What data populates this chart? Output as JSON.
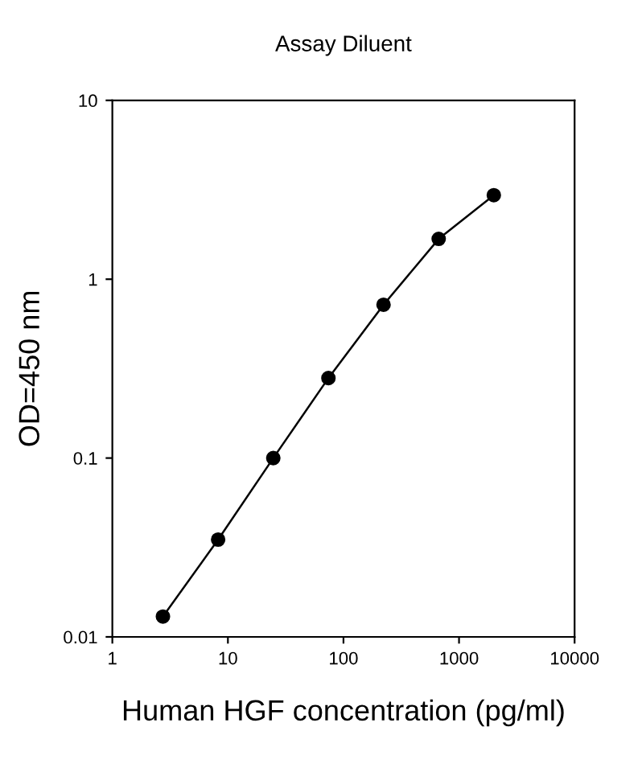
{
  "chart_data": {
    "type": "line",
    "title": "Assay Diluent",
    "xlabel": "Human HGF concentration (pg/ml)",
    "ylabel": "OD=450 nm",
    "x": [
      2.74,
      8.23,
      24.7,
      74.1,
      222.2,
      666.7,
      2000
    ],
    "series": [
      {
        "color": "#000000",
        "values": [
          0.013,
          0.035,
          0.1,
          0.28,
          0.72,
          1.68,
          2.95
        ]
      }
    ],
    "log": "xy",
    "marker": "circle",
    "line_style": "solid",
    "grid": false,
    "xlim": [
      1,
      10000
    ],
    "xticks": [
      1,
      10,
      100,
      1000,
      10000
    ],
    "ylim": [
      0.01,
      10
    ],
    "yticks": [
      0.01,
      0.1,
      1,
      10
    ]
  }
}
